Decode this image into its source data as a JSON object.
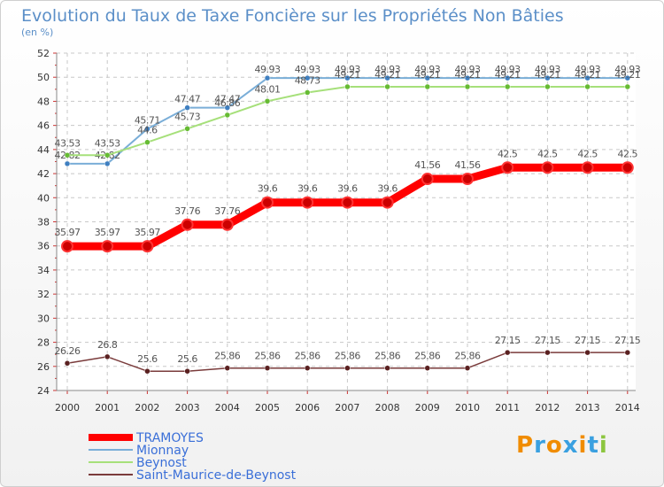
{
  "chart_data": {
    "type": "line",
    "title": "Evolution du Taux de Taxe Foncière sur les Propriétés Non Bâties",
    "subtitle": "(en %)",
    "xlabel": "",
    "ylabel": "",
    "ylim": [
      24,
      52
    ],
    "y_ticks": [
      "24",
      "26",
      "28",
      "30",
      "32",
      "34",
      "36",
      "38",
      "40",
      "42",
      "44",
      "46",
      "48",
      "50",
      "52"
    ],
    "x": [
      "2000",
      "2001",
      "2002",
      "2003",
      "2004",
      "2005",
      "2006",
      "2007",
      "2008",
      "2009",
      "2010",
      "2011",
      "2012",
      "2013",
      "2014"
    ],
    "grid": true,
    "legend_position": "bottom-left",
    "series": [
      {
        "name": "TRAMOYES",
        "color": "#ff0000",
        "marker_color": "#cc0000",
        "values": [
          35.97,
          35.97,
          35.97,
          37.76,
          37.76,
          39.6,
          39.6,
          39.6,
          39.6,
          41.56,
          41.56,
          42.5,
          42.5,
          42.5,
          42.5
        ],
        "labels": [
          "35.97",
          "35.97",
          "35.97",
          "37.76",
          "37.76",
          "39.6",
          "39.6",
          "39.6",
          "39.6",
          "41.56",
          "41.56",
          "42.5",
          "42.5",
          "42.5",
          "42.5"
        ]
      },
      {
        "name": "Mionnay",
        "color": "#7aaed8",
        "marker_color": "#3f7fc0",
        "values": [
          42.82,
          42.82,
          45.71,
          47.47,
          47.47,
          49.93,
          49.93,
          49.93,
          49.93,
          49.93,
          49.93,
          49.93,
          49.93,
          49.93,
          49.93
        ],
        "labels": [
          "42.82",
          "42.82",
          "45.71",
          "47.47",
          "47.47",
          "49.93",
          "49.93",
          "49.93",
          "49.93",
          "49.93",
          "49.93",
          "49.93",
          "49.93",
          "49.93",
          "49.93"
        ]
      },
      {
        "name": "Beynost",
        "color": "#a6e07a",
        "marker_color": "#66bb33",
        "values": [
          43.53,
          43.53,
          44.6,
          45.73,
          46.86,
          48.01,
          48.73,
          49.21,
          49.21,
          49.21,
          49.21,
          49.21,
          49.21,
          49.21,
          49.21
        ],
        "labels": [
          "43.53",
          "43.53",
          "44.6",
          "45.73",
          "46.86",
          "48.01",
          "48.73",
          "49.21",
          "49.21",
          "49.21",
          "49.21",
          "49.21",
          "49.21",
          "49.21",
          "49.21"
        ]
      },
      {
        "name": "Saint-Maurice-de-Beynost",
        "color": "#7a3b3b",
        "marker_color": "#5a2020",
        "values": [
          26.26,
          26.8,
          25.6,
          25.6,
          25.86,
          25.86,
          25.86,
          25.86,
          25.86,
          25.86,
          25.86,
          27.15,
          27.15,
          27.15,
          27.15
        ],
        "labels": [
          "26.26",
          "26.8",
          "25.6",
          "25.6",
          "25.86",
          "25.86",
          "25.86",
          "25.86",
          "25.86",
          "25.86",
          "25.86",
          "27.15",
          "27.15",
          "27.15",
          "27.15"
        ]
      }
    ]
  },
  "brand": {
    "text": "Proxiti",
    "letters": [
      "P",
      "r",
      "o",
      "x",
      "i",
      "t",
      "i"
    ],
    "letter_colors": [
      "#f08c00",
      "#3aa0e0",
      "#f08c00",
      "#3aa0e0",
      "#f08c00",
      "#3aa0e0",
      "#8cc63f"
    ]
  }
}
